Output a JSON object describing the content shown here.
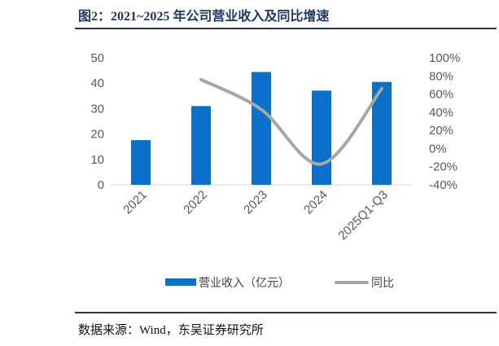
{
  "title": "图2：2021~2025 年公司营业收入及同比增速",
  "source": "数据来源：Wind，东吴证券研究所",
  "chart_data": {
    "type": "bar",
    "categories": [
      "2021",
      "2022",
      "2023",
      "2024",
      "2025Q1-Q3"
    ],
    "series": [
      {
        "name": "营业收入（亿元）",
        "type": "bar",
        "axis": "left",
        "values": [
          17.6,
          31.0,
          44.4,
          37.1,
          40.5
        ],
        "color": "#0a70c9"
      },
      {
        "name": "同比",
        "type": "line",
        "axis": "right",
        "smooth": true,
        "values": [
          null,
          76,
          43,
          -17,
          66
        ],
        "color": "#a6a6a6"
      }
    ],
    "ylim": [
      0,
      50
    ],
    "yticks": [
      0,
      10,
      20,
      30,
      40,
      50
    ],
    "y2lim": [
      -40,
      100
    ],
    "y2ticks": [
      "-40%",
      "-20%",
      "0%",
      "20%",
      "40%",
      "60%",
      "80%",
      "100%"
    ],
    "grid": false,
    "legend_position": "bottom"
  }
}
